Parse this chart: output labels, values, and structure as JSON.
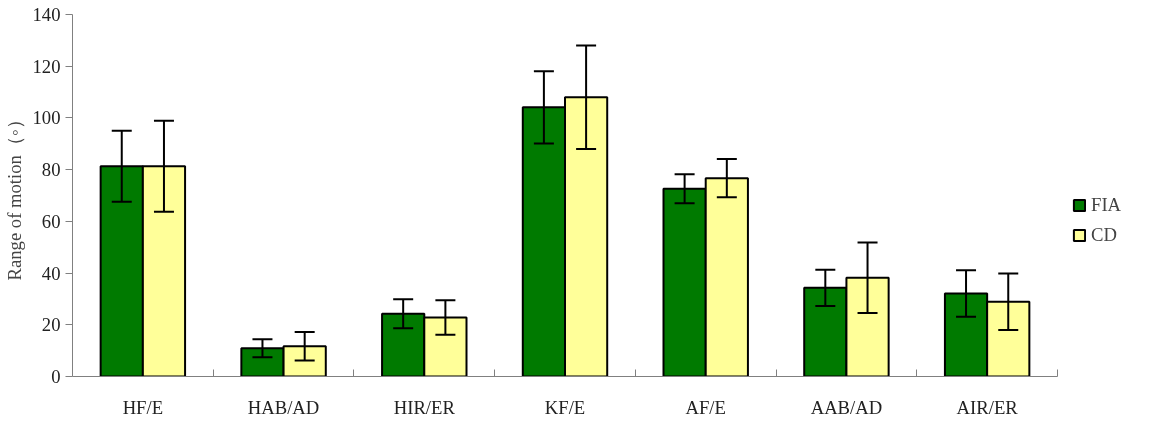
{
  "chart_data": {
    "type": "bar",
    "ylabel": "Range of motion（◦）",
    "categories": [
      "HF/E",
      "HAB/AD",
      "HIR/ER",
      "KF/E",
      "AF/E",
      "AAB/AD",
      "AIR/ER"
    ],
    "series": [
      {
        "name": "FIA",
        "color": "#007a00",
        "values": [
          81.3,
          10.9,
          24.3,
          104.1,
          72.6,
          34.3,
          32.1
        ],
        "errors": [
          13.7,
          3.5,
          5.6,
          14.0,
          5.6,
          7.0,
          9.0
        ]
      },
      {
        "name": "CD",
        "color": "#ffff99",
        "values": [
          81.3,
          11.7,
          22.8,
          108.0,
          76.7,
          38.2,
          28.9
        ],
        "errors": [
          17.6,
          5.5,
          6.7,
          20.0,
          7.4,
          13.6,
          10.9
        ]
      }
    ],
    "ylim": [
      0,
      140
    ],
    "yticks": [
      0,
      20,
      40,
      60,
      80,
      100,
      120,
      140
    ],
    "grid": false,
    "legend": "right"
  }
}
